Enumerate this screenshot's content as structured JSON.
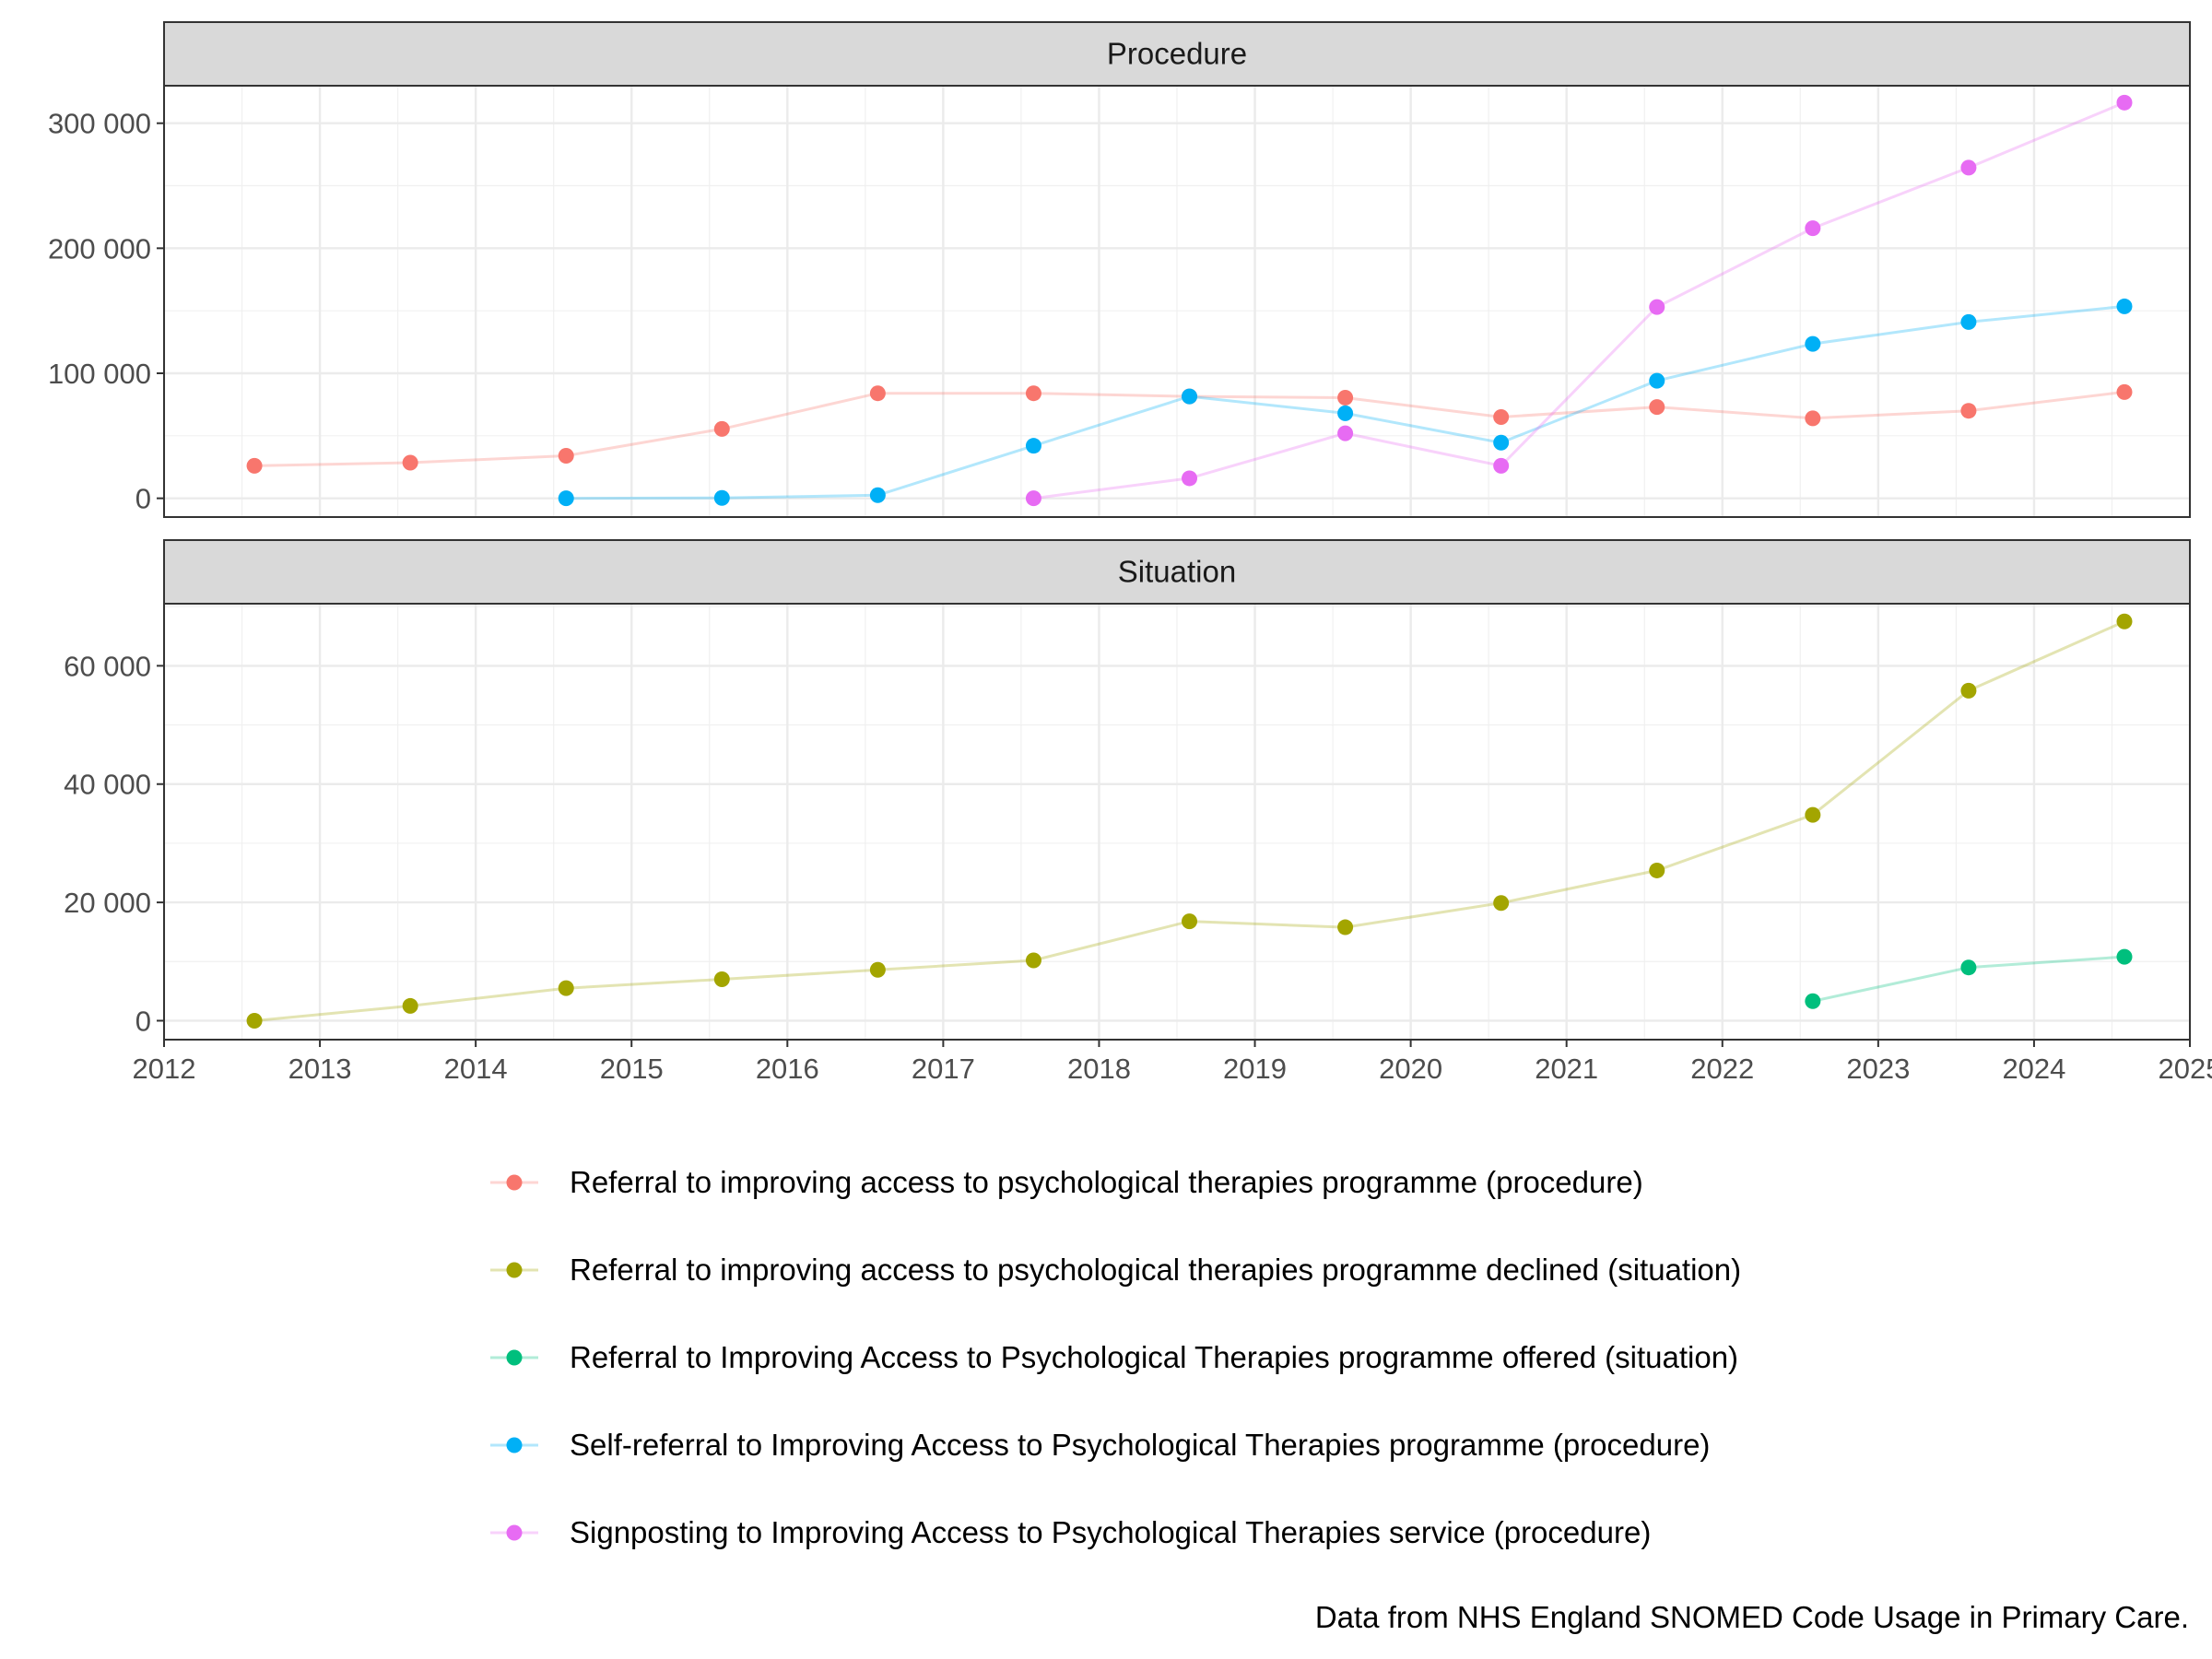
{
  "chart_data": {
    "type": "line",
    "caption": "Data from NHS England SNOMED Code Usage in Primary Care.",
    "x_axis": {
      "range": [
        2012,
        2025
      ],
      "ticks": [
        "2012",
        "2013",
        "2014",
        "2015",
        "2016",
        "2017",
        "2018",
        "2019",
        "2020",
        "2021",
        "2022",
        "2023",
        "2024",
        "2025"
      ]
    },
    "grid": true,
    "legend_position": "bottom",
    "series": [
      {
        "name": "Referral to improving access to psychological therapies programme (procedure)",
        "color": "#F8766D"
      },
      {
        "name": "Referral to improving access to psychological therapies programme declined (situation)",
        "color": "#A3A500"
      },
      {
        "name": "Referral to Improving Access to Psychological Therapies programme offered (situation)",
        "color": "#00BF7D"
      },
      {
        "name": "Self-referral to Improving Access to Psychological Therapies programme (procedure)",
        "color": "#00B0F6"
      },
      {
        "name": "Signposting to Improving Access to Psychological Therapies service (procedure)",
        "color": "#E76BF3"
      }
    ],
    "panels": [
      {
        "title": "Procedure",
        "ylim": [
          -15000,
          330000
        ],
        "y_ticks": [
          {
            "value": 0,
            "label": "0"
          },
          {
            "value": 100000,
            "label": "100 000"
          },
          {
            "value": 200000,
            "label": "200 000"
          },
          {
            "value": 300000,
            "label": "300 000"
          }
        ],
        "lines": [
          {
            "series": 0,
            "points": [
              [
                2012.58,
                26000
              ],
              [
                2013.58,
                28500
              ],
              [
                2014.58,
                34000
              ],
              [
                2015.58,
                55500
              ],
              [
                2016.58,
                84000
              ],
              [
                2017.58,
                84000
              ],
              [
                2018.58,
                81500
              ],
              [
                2019.58,
                80500
              ],
              [
                2020.58,
                65000
              ],
              [
                2021.58,
                73000
              ],
              [
                2022.58,
                64000
              ],
              [
                2023.58,
                70000
              ],
              [
                2024.58,
                85000
              ]
            ]
          },
          {
            "series": 3,
            "points": [
              [
                2014.58,
                0
              ],
              [
                2015.58,
                300
              ],
              [
                2016.58,
                2500
              ],
              [
                2017.58,
                42000
              ],
              [
                2018.58,
                81500
              ],
              [
                2019.58,
                68000
              ],
              [
                2020.58,
                44500
              ],
              [
                2021.58,
                94000
              ],
              [
                2022.58,
                123500
              ],
              [
                2023.58,
                141000
              ],
              [
                2024.58,
                153500
              ]
            ]
          },
          {
            "series": 4,
            "points": [
              [
                2017.58,
                0
              ],
              [
                2018.58,
                16000
              ],
              [
                2019.58,
                52000
              ],
              [
                2020.58,
                26000
              ],
              [
                2021.58,
                153000
              ],
              [
                2022.58,
                216000
              ],
              [
                2023.58,
                264500
              ],
              [
                2024.58,
                316500
              ]
            ]
          }
        ]
      },
      {
        "title": "Situation",
        "ylim": [
          -3200,
          70500
        ],
        "y_ticks": [
          {
            "value": 0,
            "label": "0"
          },
          {
            "value": 20000,
            "label": "20 000"
          },
          {
            "value": 40000,
            "label": "40 000"
          },
          {
            "value": 60000,
            "label": "60 000"
          }
        ],
        "lines": [
          {
            "series": 1,
            "points": [
              [
                2012.58,
                0
              ],
              [
                2013.58,
                2500
              ],
              [
                2014.58,
                5500
              ],
              [
                2015.58,
                7000
              ],
              [
                2016.58,
                8600
              ],
              [
                2017.58,
                10200
              ],
              [
                2018.58,
                16800
              ],
              [
                2019.58,
                15800
              ],
              [
                2020.58,
                19900
              ],
              [
                2021.58,
                25400
              ],
              [
                2022.58,
                34800
              ],
              [
                2023.58,
                55800
              ],
              [
                2024.58,
                67500
              ]
            ]
          },
          {
            "series": 2,
            "points": [
              [
                2022.58,
                3300
              ],
              [
                2023.58,
                9000
              ],
              [
                2024.58,
                10800
              ]
            ]
          }
        ]
      }
    ]
  }
}
